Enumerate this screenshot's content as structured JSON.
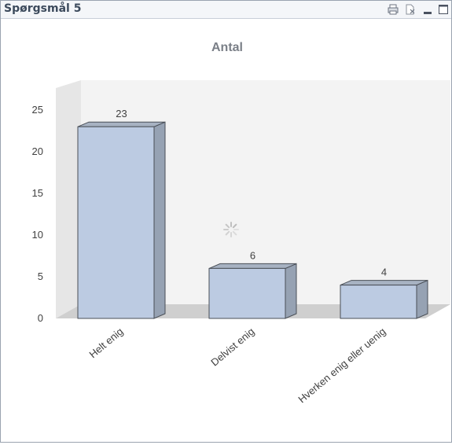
{
  "window": {
    "title": "Spørgsmål 5",
    "icons": [
      "print-icon",
      "clear-selection-icon",
      "minimize-icon",
      "maximize-icon"
    ]
  },
  "chart_data": {
    "type": "bar",
    "title": "Antal",
    "categories": [
      "Helt enig",
      "Delvist enig",
      "Hverken enig eller uenig"
    ],
    "values": [
      23,
      6,
      4
    ],
    "data_labels": [
      "23",
      "6",
      "4"
    ],
    "ylim": [
      0,
      25
    ],
    "y_ticks": [
      "0",
      "5",
      "10",
      "15",
      "20",
      "25"
    ],
    "xlabel": "",
    "ylabel": "",
    "grid": false,
    "style": "3d",
    "colors": {
      "bar_front": "#bccbe2",
      "bar_side": "#96a2b3",
      "bar_top": "#a7b2c2",
      "bar_outline": "#4a4f57",
      "wall": "#f3f3f3",
      "floor": "#cfcfcf"
    }
  }
}
